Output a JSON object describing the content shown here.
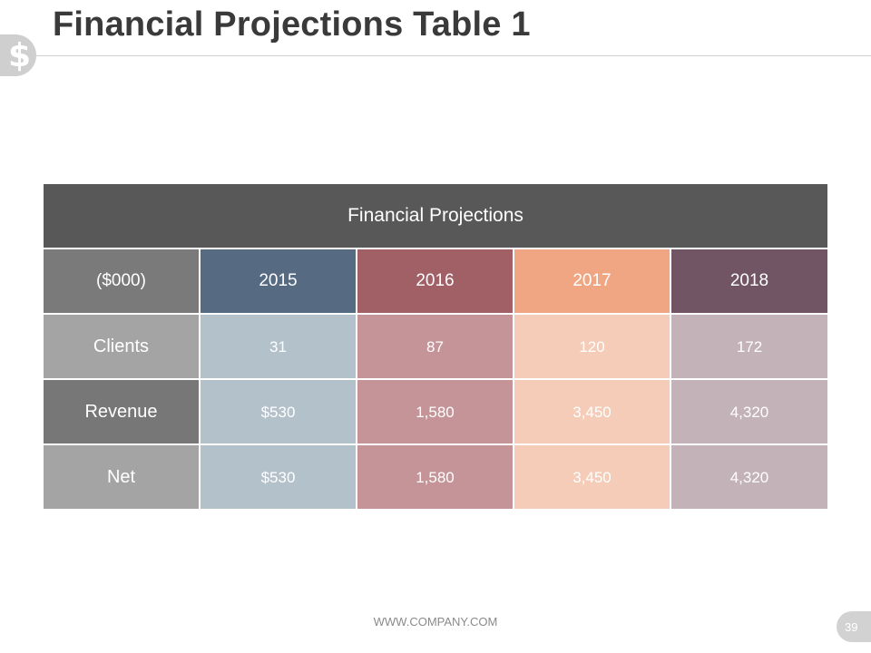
{
  "slide": {
    "title": "Financial Projections Table 1",
    "icon": "dollar-icon",
    "icon_glyph": "$",
    "footer_url": "WWW.COMPANY.COM",
    "page_number": "39"
  },
  "table": {
    "header": "Financial Projections",
    "unit_label": "($000)",
    "years": [
      "2015",
      "2016",
      "2017",
      "2018"
    ],
    "rows": [
      {
        "label": "Clients",
        "values": [
          "31",
          "87",
          "120",
          "172"
        ]
      },
      {
        "label": "Revenue",
        "values": [
          "$530",
          "1,580",
          "3,450",
          "4,320"
        ]
      },
      {
        "label": "Net",
        "values": [
          "$530",
          "1,580",
          "3,450",
          "4,320"
        ]
      }
    ]
  },
  "colors": {
    "header_bg": "#585858",
    "year_2015": "#566b82",
    "year_2016": "#a15f66",
    "year_2017": "#f0a683",
    "year_2018": "#715564"
  }
}
